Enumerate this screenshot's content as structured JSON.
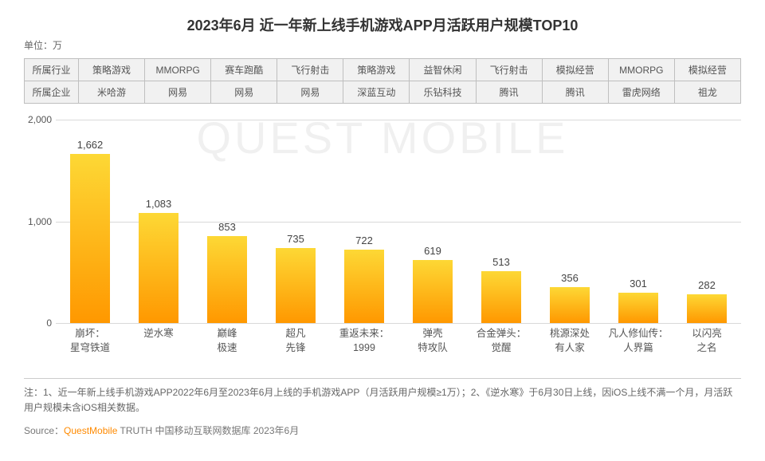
{
  "title": "2023年6月 近一年新上线手机游戏APP月活跃用户规模TOP10",
  "unit": "单位：万",
  "watermark": "QUEST MOBILE",
  "meta_table": {
    "row_headers": [
      "所属行业",
      "所属企业"
    ],
    "industry": [
      "策略游戏",
      "MMORPG",
      "赛车跑酷",
      "飞行射击",
      "策略游戏",
      "益智休闲",
      "飞行射击",
      "模拟经营",
      "MMORPG",
      "模拟经营"
    ],
    "company": [
      "米哈游",
      "网易",
      "网易",
      "网易",
      "深蓝互动",
      "乐钻科技",
      "腾讯",
      "腾讯",
      "雷虎网络",
      "祖龙"
    ]
  },
  "chart": {
    "type": "bar",
    "ylim": [
      0,
      2000
    ],
    "yticks": [
      0,
      1000,
      2000
    ],
    "ytick_labels": [
      "0",
      "1,000",
      "2,000"
    ],
    "ytick_fontsize": 12,
    "grid_color": "#d9d9d9",
    "background_color": "#ffffff",
    "bar_gradient_top": "#fdd835",
    "bar_gradient_bottom": "#ff9800",
    "bar_width_ratio": 0.58,
    "value_fontsize": 13,
    "value_color": "#444444",
    "xlabel_fontsize": 12.5,
    "xlabel_color": "#555555",
    "categories": [
      "崩坏：\n星穹铁道",
      "逆水寒",
      "巅峰\n极速",
      "超凡\n先锋",
      "重返未来：\n1999",
      "弹壳\n特攻队",
      "合金弹头：\n觉醒",
      "桃源深处\n有人家",
      "凡人修仙传：\n人界篇",
      "以闪亮\n之名"
    ],
    "values": [
      1662,
      1083,
      853,
      735,
      722,
      619,
      513,
      356,
      301,
      282
    ],
    "value_labels": [
      "1,662",
      "1,083",
      "853",
      "735",
      "722",
      "619",
      "513",
      "356",
      "301",
      "282"
    ]
  },
  "notes": "注：1、近一年新上线手机游戏APP2022年6月至2023年6月上线的手机游戏APP（月活跃用户规模≥1万）；2、《逆水寒》于6月30日上线，因iOS上线不满一个月，月活跃用户规模未含iOS相关数据。",
  "source_prefix": "Source：",
  "source_brand": "QuestMobile",
  "source_suffix": " TRUTH 中国移动互联网数据库 2023年6月"
}
